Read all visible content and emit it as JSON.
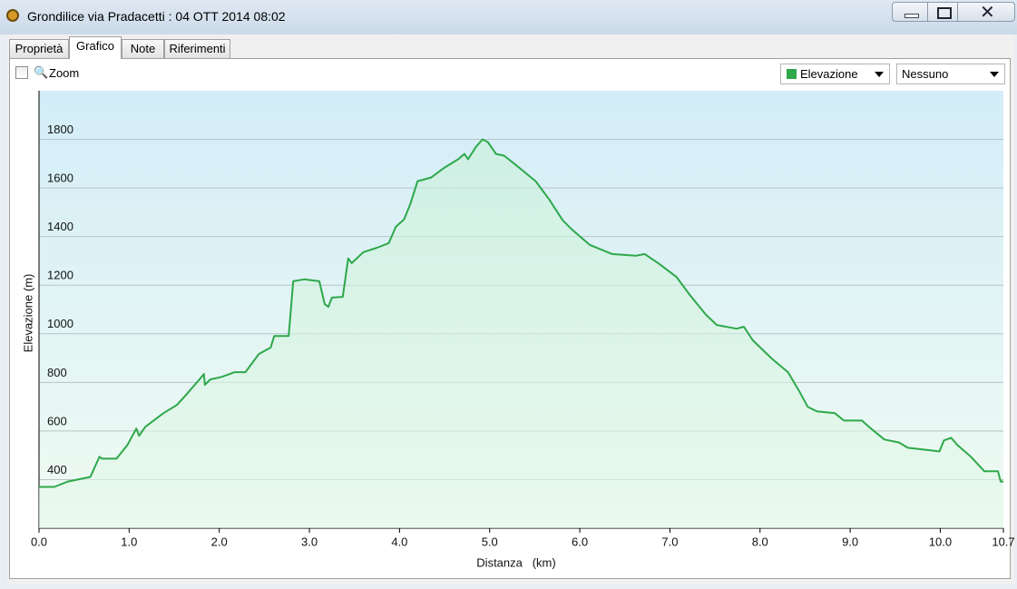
{
  "window": {
    "title": "Grondilice via Pradacetti : 04 OTT 2014 08:02"
  },
  "tabs": [
    "Proprietà",
    "Grafico",
    "Note",
    "Riferimenti"
  ],
  "toolbar": {
    "zoom": "Zoom",
    "compare_select": "Nessuno"
  },
  "chart_data": {
    "type": "line",
    "x_label": "Distanza   (km)",
    "y_label": "Elevazione (m)",
    "x": [
      0,
      0.17,
      0.32,
      0.57,
      0.67,
      0.7,
      0.78,
      0.86,
      0.98,
      1.08,
      1.11,
      1.18,
      1.38,
      1.53,
      1.63,
      1.78,
      1.83,
      1.84,
      1.9,
      2.03,
      2.17,
      2.29,
      2.44,
      2.57,
      2.61,
      2.77,
      2.82,
      2.94,
      3.11,
      3.17,
      3.21,
      3.25,
      3.37,
      3.43,
      3.47,
      3.6,
      3.75,
      3.88,
      3.96,
      4.05,
      4.12,
      4.2,
      4.35,
      4.5,
      4.65,
      4.72,
      4.76,
      4.85,
      4.92,
      4.98,
      5.07,
      5.16,
      5.29,
      5.51,
      5.66,
      5.81,
      5.91,
      6.11,
      6.36,
      6.62,
      6.72,
      6.87,
      7.07,
      7.22,
      7.4,
      7.52,
      7.74,
      7.82,
      7.92,
      8.13,
      8.31,
      8.43,
      8.53,
      8.63,
      8.83,
      8.93,
      9.13,
      9.23,
      9.38,
      9.54,
      9.64,
      9.99,
      10.04,
      10.12,
      10.19,
      10.34,
      10.49,
      10.64,
      10.67,
      10.7
    ],
    "series": [
      {
        "name": "Elevazione",
        "color": "#2ea84a",
        "values": [
          370,
          370,
          392,
          411,
          494,
          486,
          486,
          486,
          542,
          610,
          580,
          617,
          673,
          707,
          748,
          812,
          834,
          790,
          812,
          823,
          842,
          842,
          917,
          943,
          991,
          991,
          1216,
          1224,
          1216,
          1122,
          1111,
          1149,
          1152,
          1310,
          1291,
          1336,
          1354,
          1373,
          1441,
          1471,
          1534,
          1628,
          1643,
          1684,
          1718,
          1740,
          1718,
          1770,
          1800,
          1789,
          1740,
          1733,
          1695,
          1628,
          1553,
          1467,
          1430,
          1366,
          1328,
          1321,
          1328,
          1291,
          1235,
          1160,
          1078,
          1036,
          1021,
          1029,
          973,
          898,
          842,
          767,
          699,
          681,
          673,
          643,
          643,
          610,
          565,
          553,
          531,
          516,
          561,
          572,
          542,
          494,
          434,
          434,
          392,
          392
        ]
      }
    ],
    "xlim": [
      0,
      10.7
    ],
    "ylim": [
      200,
      2000
    ],
    "xticks": [
      {
        "value": 0,
        "label": "0.0"
      },
      {
        "value": 1,
        "label": "1.0"
      },
      {
        "value": 2,
        "label": "2.0"
      },
      {
        "value": 3,
        "label": "3.0"
      },
      {
        "value": 4,
        "label": "4.0"
      },
      {
        "value": 5,
        "label": "5.0"
      },
      {
        "value": 6,
        "label": "6.0"
      },
      {
        "value": 7,
        "label": "7.0"
      },
      {
        "value": 8,
        "label": "8.0"
      },
      {
        "value": 9,
        "label": "9.0"
      },
      {
        "value": 10,
        "label": "10.0"
      },
      {
        "value": 10.7,
        "label": "10.7"
      }
    ],
    "yticks": [
      400,
      600,
      800,
      1000,
      1200,
      1400,
      1600,
      1800
    ],
    "grid": true
  }
}
